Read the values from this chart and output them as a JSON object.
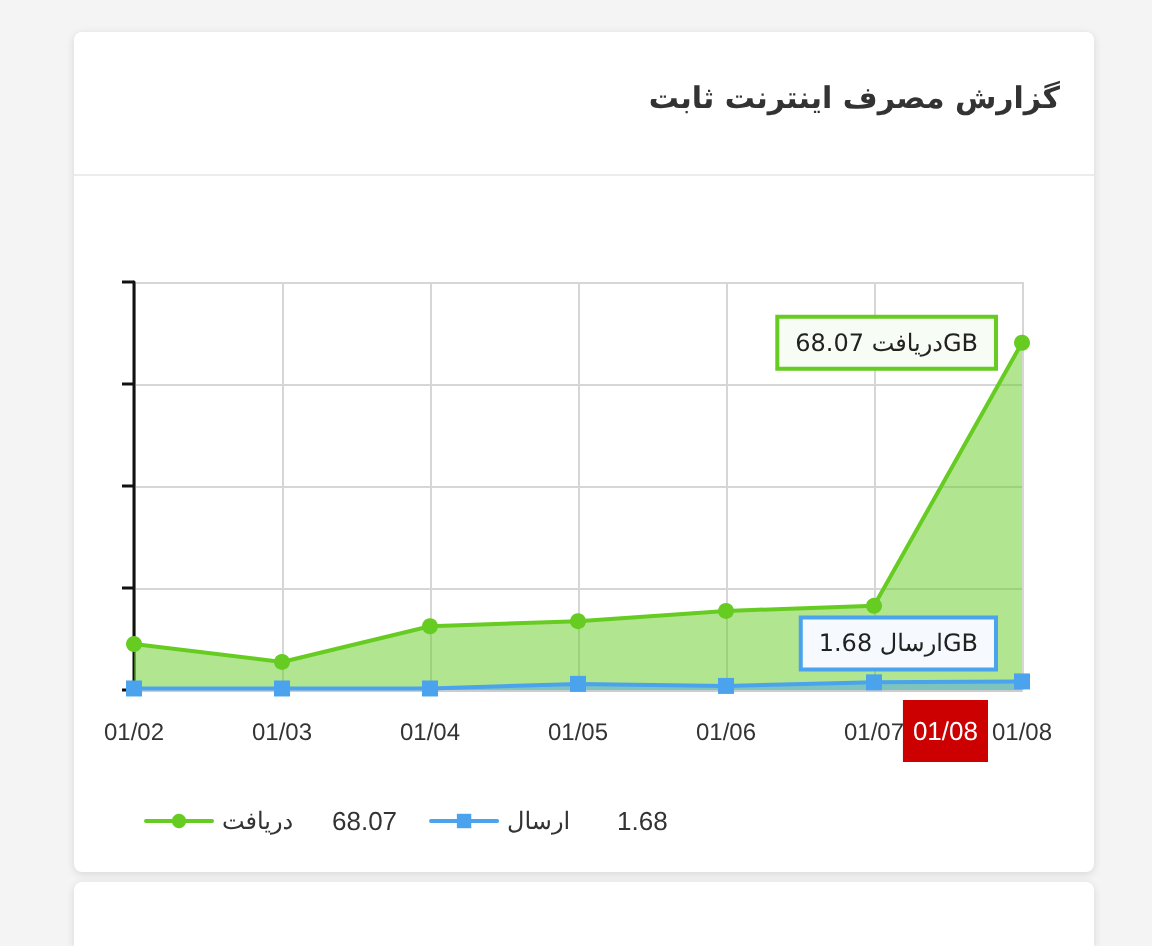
{
  "chart_data": {
    "type": "area",
    "title": "گزارش مصرف اینترنت ثابت",
    "categories": [
      "01/02",
      "01/03",
      "01/04",
      "01/05",
      "01/06",
      "01/07",
      "01/08"
    ],
    "series": [
      {
        "name": "دریافت",
        "color": "#66cc22",
        "marker": "circle",
        "values": [
          9,
          5.5,
          12.5,
          13.5,
          15.5,
          16.5,
          68.07
        ],
        "value_labels": [
          null,
          null,
          null,
          null,
          null,
          null,
          "68.07 دریافتGB"
        ]
      },
      {
        "name": "ارسال",
        "color": "#4aa3ec",
        "marker": "square",
        "values": [
          0.3,
          0.3,
          0.3,
          1.2,
          0.8,
          1.5,
          1.68
        ],
        "value_labels": [
          null,
          null,
          null,
          null,
          null,
          null,
          "1.68 ارسالGB"
        ]
      }
    ],
    "tick_labels": "x",
    "grid": true,
    "legend": "bottom left",
    "annotations": [
      "01/08",
      "68.07",
      "1.68"
    ]
  }
}
